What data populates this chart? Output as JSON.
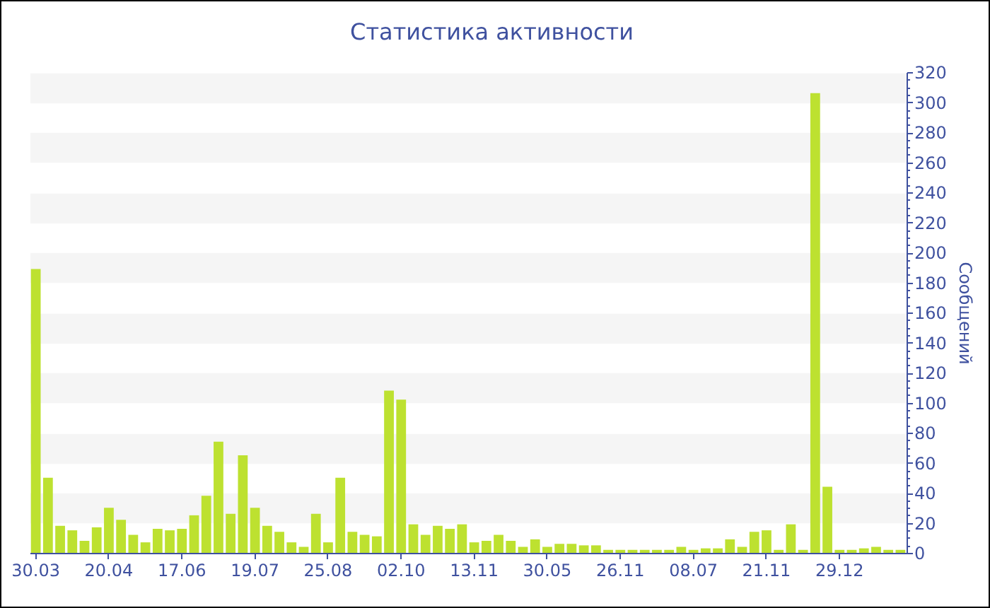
{
  "chart_data": {
    "type": "bar",
    "title": "Статистика активности",
    "ylabel": "Сообщений",
    "categories": [
      "30.03",
      null,
      null,
      null,
      null,
      null,
      "20.04",
      null,
      null,
      null,
      null,
      null,
      "17.06",
      null,
      null,
      null,
      null,
      null,
      "19.07",
      null,
      null,
      null,
      null,
      null,
      "25.08",
      null,
      null,
      null,
      null,
      null,
      "02.10",
      null,
      null,
      null,
      null,
      null,
      "13.11",
      null,
      null,
      null,
      null,
      null,
      "30.05",
      null,
      null,
      null,
      null,
      null,
      "26.11",
      null,
      null,
      null,
      null,
      null,
      "08.07",
      null,
      null,
      null,
      null,
      null,
      "21.11",
      null,
      null,
      null,
      null,
      null,
      "29.12",
      null,
      null,
      null,
      null,
      null
    ],
    "values": [
      189,
      50,
      18,
      15,
      8,
      17,
      30,
      22,
      12,
      7,
      16,
      15,
      16,
      25,
      38,
      74,
      26,
      65,
      30,
      18,
      14,
      7,
      4,
      26,
      7,
      50,
      14,
      12,
      11,
      108,
      102,
      19,
      12,
      18,
      16,
      19,
      7,
      8,
      12,
      8,
      4,
      9,
      4,
      6,
      6,
      5,
      5,
      2,
      2,
      2,
      2,
      2,
      2,
      4,
      2,
      3,
      3,
      9,
      4,
      14,
      15,
      2,
      19,
      2,
      306,
      44,
      2,
      2,
      3,
      4,
      2,
      2
    ],
    "color": "#bde130",
    "ylim": [
      0,
      320
    ],
    "yticks": [
      0,
      {
        "value": 5,
        "label": null
      },
      {
        "value": 10,
        "label": null
      },
      {
        "value": 15,
        "label": null
      },
      20,
      {
        "value": 25,
        "label": null
      },
      {
        "value": 30,
        "label": null
      },
      {
        "value": 35,
        "label": null
      },
      40,
      {
        "value": 45,
        "label": null
      },
      {
        "value": 50,
        "label": null
      },
      {
        "value": 55,
        "label": null
      },
      60,
      {
        "value": 65,
        "label": null
      },
      {
        "value": 70,
        "label": null
      },
      {
        "value": 75,
        "label": null
      },
      80,
      {
        "value": 85,
        "label": null
      },
      {
        "value": 90,
        "label": null
      },
      {
        "value": 95,
        "label": null
      },
      100,
      {
        "value": 105,
        "label": null
      },
      {
        "value": 110,
        "label": null
      },
      {
        "value": 115,
        "label": null
      },
      120,
      {
        "value": 125,
        "label": null
      },
      {
        "value": 130,
        "label": null
      },
      {
        "value": 135,
        "label": null
      },
      140,
      {
        "value": 145,
        "label": null
      },
      {
        "value": 150,
        "label": null
      },
      {
        "value": 155,
        "label": null
      },
      160,
      {
        "value": 165,
        "label": null
      },
      {
        "value": 170,
        "label": null
      },
      {
        "value": 175,
        "label": null
      },
      180,
      {
        "value": 185,
        "label": null
      },
      {
        "value": 190,
        "label": null
      },
      {
        "value": 195,
        "label": null
      },
      200,
      {
        "value": 205,
        "label": null
      },
      {
        "value": 210,
        "label": null
      },
      {
        "value": 215,
        "label": null
      },
      220,
      {
        "value": 225,
        "label": null
      },
      {
        "value": 230,
        "label": null
      },
      {
        "value": 235,
        "label": null
      },
      240,
      {
        "value": 245,
        "label": null
      },
      {
        "value": 250,
        "label": null
      },
      {
        "value": 255,
        "label": null
      },
      260,
      {
        "value": 265,
        "label": null
      },
      {
        "value": 270,
        "label": null
      },
      {
        "value": 275,
        "label": null
      },
      280,
      {
        "value": 285,
        "label": null
      },
      {
        "value": 290,
        "label": null
      },
      {
        "value": 295,
        "label": null
      },
      300,
      {
        "value": 305,
        "label": null
      },
      {
        "value": 310,
        "label": null
      },
      {
        "value": 315,
        "label": null
      },
      320
    ],
    "grid": "y"
  }
}
